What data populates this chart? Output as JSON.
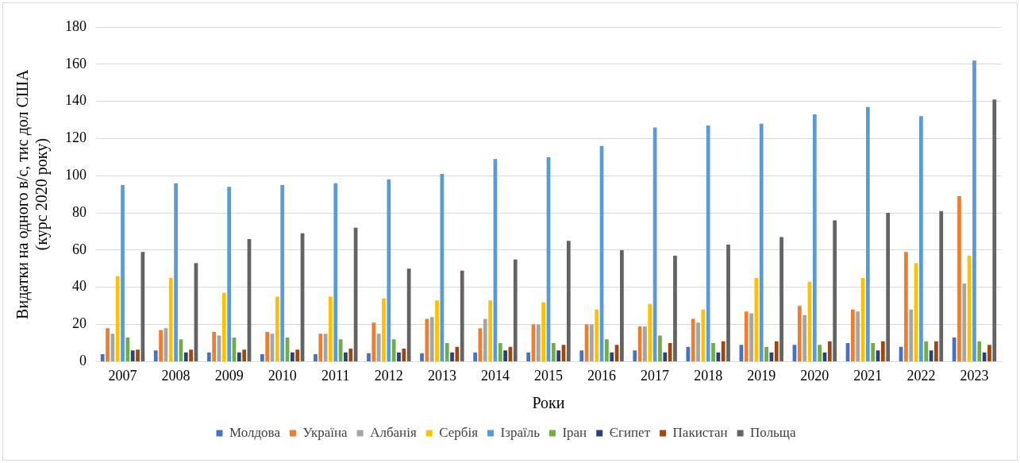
{
  "chart_data": {
    "type": "bar",
    "xlabel": "Роки",
    "ylabel": "Видатки на одного в/с, тис дол США\n(курс 2020 року)",
    "categories": [
      "2007",
      "2008",
      "2009",
      "2010",
      "2011",
      "2012",
      "2013",
      "2014",
      "2015",
      "2016",
      "2017",
      "2018",
      "2019",
      "2020",
      "2021",
      "2022",
      "2023"
    ],
    "series": [
      {
        "name": "Молдова",
        "color": "#4472c4",
        "values": [
          4,
          6,
          5,
          4,
          4,
          4.5,
          4.5,
          5,
          5,
          6,
          6,
          8,
          9,
          9,
          10,
          8,
          13
        ]
      },
      {
        "name": "Україна",
        "color": "#ed7d31",
        "values": [
          18,
          17,
          16,
          16,
          15,
          21,
          23,
          18,
          20,
          20,
          19,
          23,
          27,
          30,
          28,
          59,
          89
        ]
      },
      {
        "name": "Албанія",
        "color": "#a5a5a5",
        "values": [
          15,
          18,
          14,
          15,
          15,
          15,
          24,
          23,
          20,
          20,
          19,
          21,
          26,
          25,
          27,
          28,
          42
        ]
      },
      {
        "name": "Сербія",
        "color": "#ffc000",
        "values": [
          46,
          45,
          37,
          35,
          35,
          34,
          33,
          33,
          32,
          28,
          31,
          28,
          45,
          43,
          45,
          53,
          57
        ]
      },
      {
        "name": "Ізраїль",
        "color": "#5b9bd5",
        "values": [
          95,
          96,
          94,
          95,
          96,
          98,
          101,
          109,
          110,
          116,
          126,
          127,
          128,
          133,
          137,
          132,
          162
        ]
      },
      {
        "name": "Іран",
        "color": "#70ad47",
        "values": [
          13,
          12,
          13,
          13,
          12,
          12,
          10,
          10,
          10,
          12,
          14,
          10,
          8,
          9,
          10,
          11,
          11
        ]
      },
      {
        "name": "Єгипет",
        "color": "#264478",
        "values": [
          6,
          5,
          5,
          5,
          5,
          5,
          5,
          6,
          6,
          5,
          5,
          5,
          5,
          5,
          6,
          6,
          5
        ]
      },
      {
        "name": "Пакистан",
        "color": "#9e480e",
        "values": [
          6.5,
          6.5,
          6.5,
          6.5,
          7,
          7,
          8,
          8,
          9,
          9,
          10,
          11,
          11,
          11,
          11,
          11,
          9
        ]
      },
      {
        "name": "Польща",
        "color": "#636363",
        "values": [
          59,
          53,
          66,
          69,
          72,
          50,
          49,
          55,
          65,
          60,
          57,
          63,
          67,
          76,
          80,
          81,
          141
        ]
      }
    ],
    "ylim": [
      0,
      180
    ],
    "yticks": [
      0,
      20,
      40,
      60,
      80,
      100,
      120,
      140,
      160,
      180
    ],
    "grid": "y",
    "legend": "bottom"
  }
}
